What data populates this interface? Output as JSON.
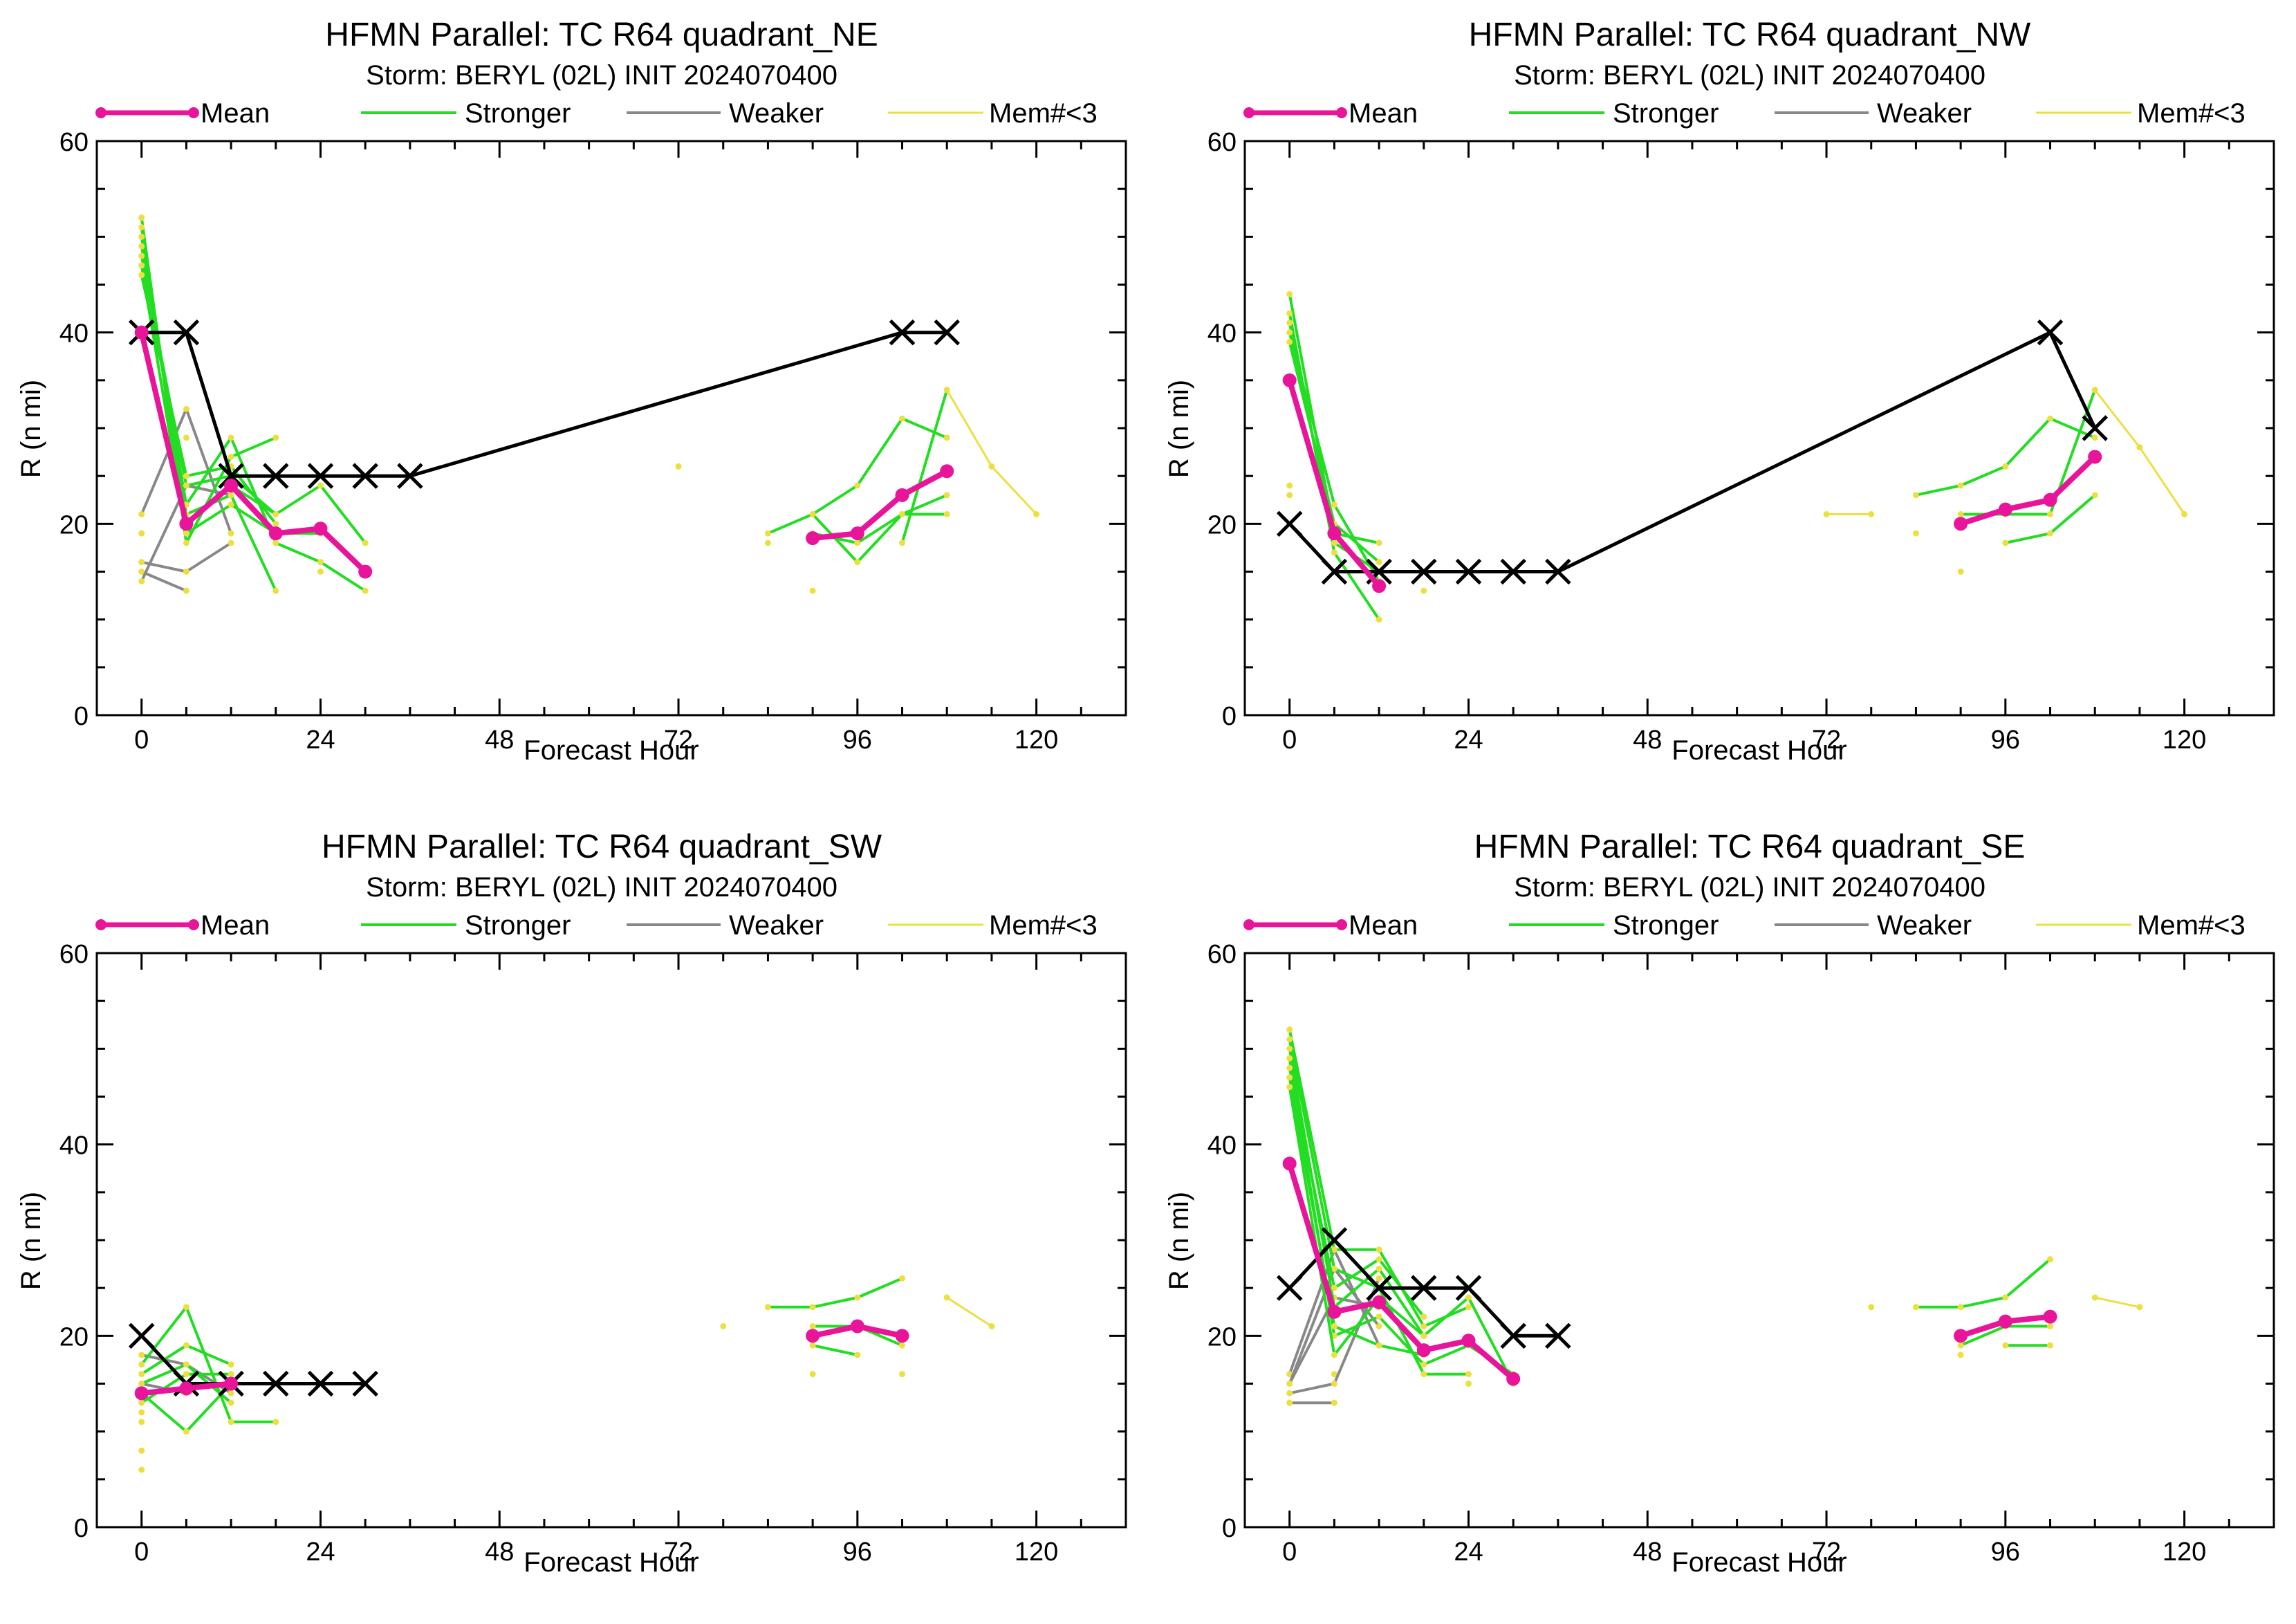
{
  "colors": {
    "mean": "#e8149a",
    "stronger": "#22dd22",
    "weaker": "#888888",
    "few": "#ece040",
    "best_track": "#000000",
    "axes": "#000000"
  },
  "legend": {
    "mean": "Mean",
    "stronger": "Stronger",
    "weaker": "Weaker",
    "few": "Mem#<3"
  },
  "panels": [
    {
      "title": "HFMN Parallel: TC  R64 quadrant_NE",
      "subtitle": "Storm: BERYL (02L) INIT 2024070400"
    },
    {
      "title": "HFMN Parallel: TC  R64 quadrant_NW",
      "subtitle": "Storm: BERYL (02L) INIT 2024070400"
    },
    {
      "title": "HFMN Parallel: TC  R64 quadrant_SW",
      "subtitle": "Storm: BERYL (02L) INIT 2024070400"
    },
    {
      "title": "HFMN Parallel: TC  R64 quadrant_SE",
      "subtitle": "Storm: BERYL (02L) INIT 2024070400"
    }
  ],
  "chart_data": [
    {
      "type": "line",
      "title": "HFMN Parallel: TC  R64 quadrant_NE",
      "subtitle": "Storm: BERYL (02L) INIT 2024070400",
      "xlabel": "Forecast Hour",
      "ylabel": "R (n mi)",
      "xlim": [
        -6,
        132
      ],
      "ylim": [
        0,
        60
      ],
      "xticks": [
        0,
        24,
        48,
        72,
        96,
        120
      ],
      "yticks": [
        0,
        20,
        40,
        60
      ],
      "grid": false,
      "legend_position": "top",
      "best_track": [
        [
          0,
          40
        ],
        [
          6,
          40
        ],
        [
          12,
          25
        ],
        [
          18,
          25
        ],
        [
          24,
          25
        ],
        [
          30,
          25
        ],
        [
          36,
          25
        ],
        [
          102,
          40
        ],
        [
          108,
          40
        ]
      ],
      "mean": [
        [
          0,
          40
        ],
        [
          6,
          20
        ],
        [
          12,
          24
        ],
        [
          18,
          19
        ],
        [
          24,
          19.5
        ],
        [
          30,
          15
        ],
        [
          90,
          18.5
        ],
        [
          96,
          19
        ],
        [
          102,
          23
        ],
        [
          108,
          25.5
        ]
      ],
      "stronger": [
        [
          [
            0,
            52
          ],
          [
            6,
            18
          ],
          [
            12,
            27
          ],
          [
            18,
            29
          ]
        ],
        [
          [
            0,
            51
          ],
          [
            6,
            20
          ],
          [
            12,
            24
          ],
          [
            18,
            21
          ],
          [
            24,
            24
          ],
          [
            30,
            18
          ]
        ],
        [
          [
            0,
            50
          ],
          [
            6,
            21
          ],
          [
            12,
            23
          ],
          [
            18,
            13
          ]
        ],
        [
          [
            0,
            49
          ],
          [
            6,
            22
          ],
          [
            12,
            29
          ],
          [
            18,
            18
          ],
          [
            24,
            16
          ],
          [
            30,
            13
          ]
        ],
        [
          [
            0,
            48
          ],
          [
            6,
            24
          ],
          [
            12,
            25
          ],
          [
            18,
            21
          ]
        ],
        [
          [
            0,
            47
          ],
          [
            6,
            19
          ],
          [
            12,
            22
          ],
          [
            18,
            19
          ],
          [
            24,
            19
          ]
        ],
        [
          [
            0,
            46
          ],
          [
            6,
            25
          ],
          [
            12,
            26
          ],
          [
            18,
            20
          ]
        ],
        [
          [
            84,
            19
          ],
          [
            90,
            21
          ],
          [
            96,
            24
          ],
          [
            102,
            31
          ],
          [
            108,
            29
          ]
        ],
        [
          [
            90,
            21
          ],
          [
            96,
            16
          ],
          [
            102,
            21
          ],
          [
            108,
            23
          ]
        ],
        [
          [
            90,
            19
          ],
          [
            96,
            18
          ],
          [
            102,
            21
          ],
          [
            108,
            21
          ]
        ],
        [
          [
            102,
            18
          ],
          [
            108,
            34
          ]
        ]
      ],
      "weaker": [
        [
          [
            0,
            21
          ],
          [
            6,
            32
          ],
          [
            12,
            19
          ]
        ],
        [
          [
            0,
            16
          ],
          [
            6,
            15
          ],
          [
            12,
            18
          ]
        ],
        [
          [
            0,
            15
          ],
          [
            6,
            13
          ]
        ],
        [
          [
            0,
            14
          ],
          [
            6,
            24
          ],
          [
            12,
            23
          ]
        ]
      ],
      "few": [
        [
          [
            108,
            34
          ],
          [
            114,
            26
          ],
          [
            120,
            21
          ]
        ],
        [
          [
            72,
            26
          ]
        ],
        [
          [
            84,
            18
          ]
        ],
        [
          [
            90,
            13
          ]
        ],
        [
          [
            24,
            15
          ]
        ],
        [
          [
            30,
            18
          ]
        ],
        [
          [
            0,
            19
          ]
        ],
        [
          [
            6,
            29
          ]
        ],
        [
          [
            6,
            13
          ]
        ]
      ]
    },
    {
      "type": "line",
      "title": "HFMN Parallel: TC  R64 quadrant_NW",
      "subtitle": "Storm: BERYL (02L) INIT 2024070400",
      "xlabel": "Forecast Hour",
      "ylabel": "R (n mi)",
      "xlim": [
        -6,
        132
      ],
      "ylim": [
        0,
        60
      ],
      "xticks": [
        0,
        24,
        48,
        72,
        96,
        120
      ],
      "yticks": [
        0,
        20,
        40,
        60
      ],
      "grid": false,
      "legend_position": "top",
      "best_track": [
        [
          0,
          20
        ],
        [
          6,
          15
        ],
        [
          12,
          15
        ],
        [
          18,
          15
        ],
        [
          24,
          15
        ],
        [
          30,
          15
        ],
        [
          36,
          15
        ],
        [
          102,
          40
        ],
        [
          108,
          30
        ]
      ],
      "mean": [
        [
          0,
          35
        ],
        [
          6,
          19
        ],
        [
          12,
          13.5
        ],
        [
          90,
          20
        ],
        [
          96,
          21.5
        ],
        [
          102,
          22.5
        ],
        [
          108,
          27
        ]
      ],
      "stronger": [
        [
          [
            0,
            44
          ],
          [
            6,
            19
          ],
          [
            12,
            18
          ]
        ],
        [
          [
            0,
            42
          ],
          [
            6,
            17
          ],
          [
            12,
            10
          ]
        ],
        [
          [
            0,
            41
          ],
          [
            6,
            18
          ],
          [
            12,
            15
          ]
        ],
        [
          [
            0,
            40
          ],
          [
            6,
            22
          ],
          [
            12,
            14
          ]
        ],
        [
          [
            0,
            39
          ],
          [
            6,
            20
          ],
          [
            12,
            16
          ]
        ],
        [
          [
            84,
            23
          ],
          [
            90,
            24
          ],
          [
            96,
            26
          ],
          [
            102,
            31
          ],
          [
            108,
            29
          ]
        ],
        [
          [
            90,
            21
          ],
          [
            96,
            21
          ],
          [
            102,
            21
          ],
          [
            108,
            34
          ]
        ],
        [
          [
            96,
            18
          ],
          [
            102,
            19
          ],
          [
            108,
            23
          ]
        ]
      ],
      "weaker": [],
      "few": [
        [
          [
            108,
            34
          ],
          [
            114,
            28
          ],
          [
            120,
            21
          ]
        ],
        [
          [
            72,
            21
          ],
          [
            78,
            21
          ]
        ],
        [
          [
            84,
            19
          ]
        ],
        [
          [
            90,
            15
          ]
        ],
        [
          [
            0,
            24
          ]
        ],
        [
          [
            0,
            23
          ]
        ],
        [
          [
            18,
            13
          ]
        ]
      ]
    },
    {
      "type": "line",
      "title": "HFMN Parallel: TC  R64 quadrant_SW",
      "subtitle": "Storm: BERYL (02L) INIT 2024070400",
      "xlabel": "Forecast Hour",
      "ylabel": "R (n mi)",
      "xlim": [
        -6,
        132
      ],
      "ylim": [
        0,
        60
      ],
      "xticks": [
        0,
        24,
        48,
        72,
        96,
        120
      ],
      "yticks": [
        0,
        20,
        40,
        60
      ],
      "grid": false,
      "legend_position": "top",
      "best_track": [
        [
          0,
          20
        ],
        [
          6,
          15
        ],
        [
          12,
          15
        ],
        [
          18,
          15
        ],
        [
          24,
          15
        ],
        [
          30,
          15
        ]
      ],
      "mean": [
        [
          0,
          14
        ],
        [
          6,
          14.5
        ],
        [
          12,
          15
        ],
        [
          90,
          20
        ],
        [
          96,
          21
        ],
        [
          102,
          20
        ]
      ],
      "stronger": [
        [
          [
            0,
            17
          ],
          [
            6,
            23
          ],
          [
            12,
            11
          ],
          [
            18,
            11
          ]
        ],
        [
          [
            0,
            16
          ],
          [
            6,
            19
          ],
          [
            12,
            17
          ]
        ],
        [
          [
            0,
            15
          ],
          [
            6,
            17
          ],
          [
            12,
            13
          ]
        ],
        [
          [
            0,
            14
          ],
          [
            6,
            10
          ],
          [
            12,
            15
          ]
        ],
        [
          [
            0,
            13
          ],
          [
            6,
            16
          ],
          [
            12,
            16
          ]
        ],
        [
          [
            84,
            23
          ],
          [
            90,
            23
          ],
          [
            96,
            24
          ],
          [
            102,
            26
          ]
        ],
        [
          [
            90,
            21
          ],
          [
            96,
            21
          ],
          [
            102,
            19
          ]
        ],
        [
          [
            90,
            19
          ],
          [
            96,
            18
          ]
        ]
      ],
      "weaker": [
        [
          [
            0,
            18
          ],
          [
            6,
            17
          ],
          [
            12,
            14
          ]
        ],
        [
          [
            0,
            15
          ],
          [
            6,
            14
          ]
        ]
      ],
      "few": [
        [
          [
            108,
            24
          ],
          [
            114,
            21
          ]
        ],
        [
          [
            78,
            21
          ]
        ],
        [
          [
            90,
            16
          ]
        ],
        [
          [
            102,
            16
          ]
        ],
        [
          [
            0,
            11
          ]
        ],
        [
          [
            0,
            8
          ]
        ],
        [
          [
            0,
            6
          ]
        ],
        [
          [
            0,
            12
          ]
        ]
      ]
    },
    {
      "type": "line",
      "title": "HFMN Parallel: TC  R64 quadrant_SE",
      "subtitle": "Storm: BERYL (02L) INIT 2024070400",
      "xlabel": "Forecast Hour",
      "ylabel": "R (n mi)",
      "xlim": [
        -6,
        132
      ],
      "ylim": [
        0,
        60
      ],
      "xticks": [
        0,
        24,
        48,
        72,
        96,
        120
      ],
      "yticks": [
        0,
        20,
        40,
        60
      ],
      "grid": false,
      "legend_position": "top",
      "best_track": [
        [
          0,
          25
        ],
        [
          6,
          30
        ],
        [
          12,
          25
        ],
        [
          18,
          25
        ],
        [
          24,
          25
        ],
        [
          30,
          20
        ],
        [
          36,
          20
        ]
      ],
      "mean": [
        [
          0,
          38
        ],
        [
          6,
          22.5
        ],
        [
          12,
          23.5
        ],
        [
          18,
          18.5
        ],
        [
          24,
          19.5
        ],
        [
          30,
          15.5
        ],
        [
          90,
          20
        ],
        [
          96,
          21.5
        ],
        [
          102,
          22
        ]
      ],
      "stronger": [
        [
          [
            0,
            52
          ],
          [
            6,
            29
          ],
          [
            12,
            29
          ],
          [
            18,
            21
          ],
          [
            24,
            23
          ]
        ],
        [
          [
            0,
            51
          ],
          [
            6,
            27
          ],
          [
            12,
            25
          ],
          [
            18,
            16
          ],
          [
            24,
            16
          ]
        ],
        [
          [
            0,
            50
          ],
          [
            6,
            23
          ],
          [
            12,
            27
          ],
          [
            18,
            20
          ],
          [
            24,
            24
          ],
          [
            30,
            15
          ]
        ],
        [
          [
            0,
            49
          ],
          [
            6,
            20
          ],
          [
            12,
            22
          ],
          [
            18,
            17
          ],
          [
            24,
            19
          ],
          [
            30,
            16
          ]
        ],
        [
          [
            0,
            48
          ],
          [
            6,
            25
          ],
          [
            12,
            28
          ],
          [
            18,
            22
          ]
        ],
        [
          [
            0,
            47
          ],
          [
            6,
            21
          ],
          [
            12,
            19
          ],
          [
            18,
            18
          ]
        ],
        [
          [
            0,
            46
          ],
          [
            6,
            18
          ],
          [
            12,
            24
          ],
          [
            18,
            20
          ]
        ],
        [
          [
            84,
            23
          ],
          [
            90,
            23
          ],
          [
            96,
            24
          ],
          [
            102,
            28
          ]
        ],
        [
          [
            90,
            19
          ],
          [
            96,
            21
          ],
          [
            102,
            21
          ]
        ],
        [
          [
            96,
            19
          ],
          [
            102,
            19
          ]
        ]
      ],
      "weaker": [
        [
          [
            0,
            16
          ],
          [
            6,
            29
          ],
          [
            12,
            19
          ]
        ],
        [
          [
            0,
            15
          ],
          [
            6,
            27
          ],
          [
            12,
            21
          ]
        ],
        [
          [
            0,
            13
          ],
          [
            6,
            13
          ]
        ],
        [
          [
            0,
            14
          ],
          [
            6,
            15
          ],
          [
            12,
            26
          ]
        ],
        [
          [
            0,
            15
          ],
          [
            6,
            24
          ],
          [
            12,
            23
          ]
        ]
      ],
      "few": [
        [
          [
            108,
            24
          ],
          [
            114,
            23
          ]
        ],
        [
          [
            78,
            23
          ]
        ],
        [
          [
            90,
            18
          ]
        ],
        [
          [
            24,
            15
          ]
        ],
        [
          [
            6,
            16
          ]
        ]
      ]
    }
  ]
}
